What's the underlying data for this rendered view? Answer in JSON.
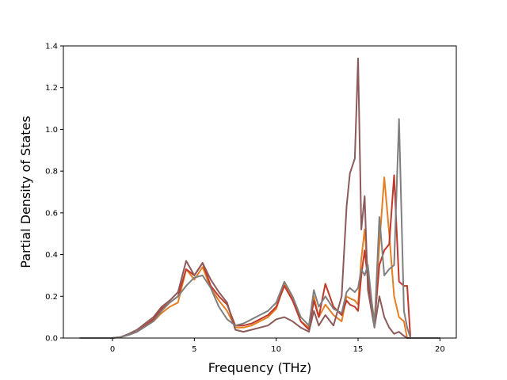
{
  "chart_data": {
    "type": "line",
    "title": "",
    "xlabel": "Frequency (THz)",
    "ylabel": "Partial Density of States",
    "xlim": [
      -3,
      21
    ],
    "ylim": [
      0,
      1.4
    ],
    "xticks": [
      0,
      5,
      10,
      15,
      20
    ],
    "xtick_labels": [
      "0",
      "5",
      "10",
      "15",
      "20"
    ],
    "yticks": [
      0.0,
      0.2,
      0.4,
      0.6,
      0.8,
      1.0,
      1.2,
      1.4
    ],
    "ytick_labels": [
      "0.0",
      "0.2",
      "0.4",
      "0.6",
      "0.8",
      "1.0",
      "1.2",
      "1.4"
    ],
    "grid": false,
    "series": [
      {
        "color": "#e67e22",
        "x": [
          -2,
          0,
          0.5,
          1,
          1.5,
          2,
          2.5,
          3,
          3.5,
          4,
          4.5,
          5,
          5.5,
          6,
          6.5,
          7,
          7.5,
          8,
          8.5,
          9,
          9.5,
          10,
          10.5,
          11,
          11.5,
          12,
          12.3,
          12.6,
          13,
          13.5,
          14,
          14.3,
          14.5,
          14.8,
          15,
          15.2,
          15.4,
          15.6,
          16,
          16.3,
          16.6,
          16.9,
          17.2,
          17.5,
          17.8,
          18,
          18.2,
          20
        ],
        "y": [
          0,
          0,
          0.005,
          0.015,
          0.03,
          0.06,
          0.08,
          0.12,
          0.15,
          0.17,
          0.33,
          0.28,
          0.34,
          0.24,
          0.18,
          0.13,
          0.05,
          0.05,
          0.06,
          0.08,
          0.1,
          0.14,
          0.26,
          0.19,
          0.08,
          0.05,
          0.2,
          0.1,
          0.16,
          0.11,
          0.08,
          0.2,
          0.19,
          0.18,
          0.16,
          0.38,
          0.52,
          0.3,
          0.08,
          0.45,
          0.77,
          0.5,
          0.2,
          0.1,
          0.08,
          0.0,
          0.0,
          0.0
        ]
      },
      {
        "color": "#c0392b",
        "x": [
          -2,
          0,
          0.5,
          1,
          1.5,
          2,
          2.5,
          3,
          3.5,
          4,
          4.5,
          5,
          5.5,
          6,
          6.5,
          7,
          7.5,
          8,
          8.5,
          9,
          9.5,
          10,
          10.5,
          11,
          11.5,
          12,
          12.3,
          12.6,
          13,
          13.5,
          14,
          14.3,
          14.5,
          14.8,
          15,
          15.2,
          15.4,
          15.6,
          16,
          16.3,
          16.6,
          16.9,
          17.2,
          17.5,
          17.8,
          18,
          18.2,
          20
        ],
        "y": [
          0,
          0,
          0.005,
          0.015,
          0.03,
          0.06,
          0.09,
          0.14,
          0.17,
          0.2,
          0.33,
          0.3,
          0.36,
          0.25,
          0.2,
          0.16,
          0.06,
          0.06,
          0.07,
          0.09,
          0.11,
          0.15,
          0.25,
          0.18,
          0.08,
          0.04,
          0.18,
          0.1,
          0.26,
          0.15,
          0.11,
          0.18,
          0.16,
          0.15,
          0.13,
          0.3,
          0.42,
          0.28,
          0.07,
          0.35,
          0.42,
          0.45,
          0.78,
          0.27,
          0.25,
          0.25,
          0.0,
          0.0
        ]
      },
      {
        "color": "#8c5a5a",
        "x": [
          -2,
          0,
          0.5,
          1,
          1.5,
          2,
          2.5,
          3,
          3.5,
          4,
          4.5,
          5,
          5.5,
          6,
          6.5,
          7,
          7.5,
          8,
          8.5,
          9,
          9.5,
          10,
          10.5,
          11,
          11.5,
          12,
          12.3,
          12.6,
          13,
          13.5,
          14,
          14.3,
          14.5,
          14.8,
          15,
          15.2,
          15.4,
          15.6,
          16,
          16.3,
          16.6,
          16.9,
          17.2,
          17.5,
          17.8,
          18,
          18.2,
          20
        ],
        "y": [
          0,
          0,
          0.005,
          0.02,
          0.04,
          0.07,
          0.1,
          0.15,
          0.18,
          0.22,
          0.37,
          0.3,
          0.36,
          0.28,
          0.22,
          0.17,
          0.04,
          0.03,
          0.04,
          0.05,
          0.06,
          0.09,
          0.1,
          0.08,
          0.05,
          0.03,
          0.13,
          0.06,
          0.11,
          0.06,
          0.2,
          0.63,
          0.79,
          0.86,
          1.34,
          0.52,
          0.68,
          0.23,
          0.05,
          0.2,
          0.1,
          0.05,
          0.02,
          0.03,
          0.01,
          0.0,
          0.0,
          0.0
        ]
      },
      {
        "color": "#7f7f7f",
        "x": [
          -2,
          0,
          0.5,
          1,
          1.5,
          2,
          2.5,
          3,
          3.5,
          4,
          4.5,
          5,
          5.5,
          6,
          6.5,
          7,
          7.5,
          8,
          8.5,
          9,
          9.5,
          10,
          10.5,
          11,
          11.5,
          12,
          12.3,
          12.6,
          13,
          13.5,
          14,
          14.3,
          14.5,
          14.8,
          15,
          15.2,
          15.4,
          15.6,
          16,
          16.3,
          16.6,
          16.9,
          17.2,
          17.5,
          17.8,
          18,
          18.2,
          20
        ],
        "y": [
          0,
          0,
          0.005,
          0.015,
          0.03,
          0.055,
          0.08,
          0.13,
          0.17,
          0.2,
          0.25,
          0.29,
          0.3,
          0.24,
          0.15,
          0.09,
          0.06,
          0.07,
          0.09,
          0.11,
          0.13,
          0.17,
          0.27,
          0.2,
          0.1,
          0.06,
          0.23,
          0.15,
          0.2,
          0.14,
          0.12,
          0.22,
          0.24,
          0.22,
          0.24,
          0.33,
          0.3,
          0.35,
          0.05,
          0.58,
          0.3,
          0.33,
          0.35,
          1.05,
          0.13,
          0.05,
          0.0,
          0.0
        ]
      }
    ]
  }
}
